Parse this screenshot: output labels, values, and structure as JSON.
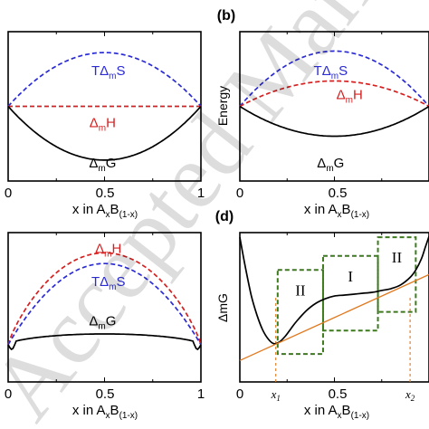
{
  "watermark": "Accepted Manuscript",
  "colors": {
    "TdS": "#2b2bd4",
    "dH": "#d42020",
    "dG": "#000000",
    "box": "#3d7a1e",
    "tangent": "#e07a20"
  },
  "chart_data": [
    {
      "panel": "a",
      "label": "",
      "type": "line",
      "xlabel_main": "x in A",
      "xlabel_sub1": "x",
      "xlabel_mid": "B",
      "xlabel_sub2": "(1-x)",
      "ylabel": "",
      "xlim": [
        0,
        1
      ],
      "xticks": [
        "0",
        "0.5",
        "1"
      ],
      "ylim": [
        -1,
        1
      ],
      "series": [
        {
          "name": "TΔmS",
          "style": "dashed",
          "color": "#2b2bd4",
          "kind": "arch",
          "base": 0.0,
          "peak": 0.72,
          "p": 1.0,
          "lx": 0.52,
          "ly": 0.42
        },
        {
          "name": "ΔmH",
          "style": "dashed",
          "color": "#d42020",
          "kind": "arch",
          "base": 0.0,
          "peak": 0.0,
          "p": 1.0,
          "lx": 0.49,
          "ly": -0.28
        },
        {
          "name": "ΔmG",
          "style": "solid",
          "color": "#000000",
          "kind": "arch",
          "base": 0.0,
          "peak": -0.72,
          "p": 1.0,
          "lx": 0.49,
          "ly": -0.82
        }
      ]
    },
    {
      "panel": "b",
      "label": "(b)",
      "type": "line",
      "xlabel_main": "x in A",
      "xlabel_sub1": "x",
      "xlabel_mid": "B",
      "xlabel_sub2": "(1-x)",
      "ylabel": "Energy",
      "xlim": [
        0,
        1
      ],
      "xticks": [
        "0",
        "0.5",
        "1"
      ],
      "ylim": [
        -1,
        1
      ],
      "series": [
        {
          "name": "TΔmS",
          "style": "dashed",
          "color": "#2b2bd4",
          "kind": "arch",
          "base": 0.0,
          "peak": 0.74,
          "p": 1.0,
          "lx": 0.48,
          "ly": 0.42
        },
        {
          "name": "ΔmH",
          "style": "dashed",
          "color": "#d42020",
          "kind": "arch",
          "base": 0.0,
          "peak": 0.34,
          "p": 1.0,
          "lx": 0.58,
          "ly": 0.1
        },
        {
          "name": "ΔmG",
          "style": "solid",
          "color": "#000000",
          "kind": "arch",
          "base": 0.0,
          "peak": -0.4,
          "p": 1.0,
          "lx": 0.48,
          "ly": -0.82
        }
      ]
    },
    {
      "panel": "c",
      "label": "",
      "type": "line",
      "xlabel_main": "x in A",
      "xlabel_sub1": "x",
      "xlabel_mid": "B",
      "xlabel_sub2": "(1-x)",
      "ylabel": "",
      "xlim": [
        0,
        1
      ],
      "xticks": [
        "0",
        "0.5",
        "1"
      ],
      "ylim": [
        -0.35,
        1.05
      ],
      "series": [
        {
          "name": "ΔmH",
          "style": "dashed",
          "color": "#d42020",
          "kind": "arch",
          "base": 0.0,
          "peak": 0.86,
          "p": 0.85,
          "lx": 0.52,
          "ly": 0.86
        },
        {
          "name": "TΔmS",
          "style": "dashed",
          "color": "#2b2bd4",
          "kind": "arch",
          "base": 0.0,
          "peak": 0.76,
          "p": 1.0,
          "lx": 0.52,
          "ly": 0.55
        },
        {
          "name": "ΔmG",
          "style": "solid",
          "color": "#000000",
          "kind": "bump",
          "base": 0.0,
          "peak": 0.1,
          "dip": 0.11,
          "lx": 0.49,
          "ly": 0.18
        }
      ]
    },
    {
      "panel": "d",
      "label": "(d)",
      "type": "line",
      "xlabel_main": "x in A",
      "xlabel_sub1": "x",
      "xlabel_mid": "B",
      "xlabel_sub2": "(1-x)",
      "ylabel": "ΔmG",
      "xlim": [
        0,
        1
      ],
      "xticks": [
        "0",
        "0.5",
        "1"
      ],
      "ylim": [
        -0.6,
        1.0
      ],
      "series": [
        {
          "name": "",
          "style": "solid",
          "color": "#000000",
          "kind": "points",
          "x": [
            0.0,
            0.03,
            0.06,
            0.09,
            0.12,
            0.15,
            0.18,
            0.21,
            0.24,
            0.27,
            0.3,
            0.35,
            0.4,
            0.45,
            0.5,
            0.55,
            0.6,
            0.65,
            0.7,
            0.75,
            0.8,
            0.85,
            0.9,
            0.93,
            0.96,
            0.98,
            1.0
          ],
          "y": [
            0.95,
            0.62,
            0.33,
            0.12,
            -0.04,
            -0.14,
            -0.19,
            -0.17,
            -0.11,
            -0.03,
            0.05,
            0.16,
            0.24,
            0.29,
            0.32,
            0.33,
            0.34,
            0.35,
            0.36,
            0.38,
            0.4,
            0.44,
            0.52,
            0.6,
            0.72,
            0.84,
            0.96
          ]
        },
        {
          "name": "",
          "style": "solid",
          "color": "#e07a20",
          "kind": "points",
          "x": [
            0.0,
            1.0
          ],
          "y": [
            -0.37,
            0.55
          ]
        }
      ],
      "regions": [
        "II",
        "I",
        "II"
      ],
      "marks": [
        {
          "x": 0.19,
          "label": "x1",
          "sub": "1"
        },
        {
          "x": 0.9,
          "label": "x2",
          "sub": "2"
        }
      ]
    }
  ]
}
